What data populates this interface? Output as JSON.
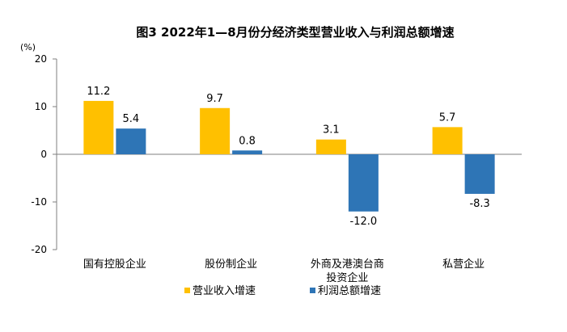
{
  "chart_data": {
    "type": "bar",
    "title": "图3  2022年1—8月份分经济类型营业收入与利润总额增速",
    "y_unit": "(%)",
    "ylim": [
      -20,
      20
    ],
    "yticks": [
      20,
      10,
      0,
      -10,
      -20
    ],
    "categories": [
      "国有控股企业",
      "股份制企业",
      "外商及港澳台商投资企业",
      "私营企业"
    ],
    "category_lines": [
      [
        "国有控股企业"
      ],
      [
        "股份制企业"
      ],
      [
        "外商及港澳台商",
        "投资企业"
      ],
      [
        "私营企业"
      ]
    ],
    "series": [
      {
        "name": "营业收入增速",
        "values": [
          11.2,
          9.7,
          3.1,
          5.7
        ],
        "labels": [
          "11.2",
          "9.7",
          "3.1",
          "5.7"
        ],
        "color": "#FFC000"
      },
      {
        "name": "利润总额增速",
        "values": [
          5.4,
          0.8,
          -12.0,
          -8.3
        ],
        "labels": [
          "5.4",
          "0.8",
          "-12.0",
          "-8.3"
        ],
        "color": "#2E75B6"
      }
    ],
    "grid": false,
    "legend_position": "bottom-left"
  }
}
